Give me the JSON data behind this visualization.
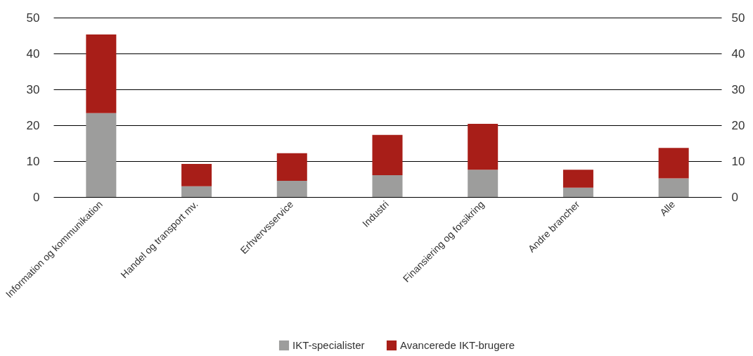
{
  "chart_data": {
    "type": "bar",
    "stacked": true,
    "categories": [
      "Information og kommunikation",
      "Handel og transport mv.",
      "Erhvervsservice",
      "Industri",
      "Finansiering og forsikring",
      "Andre brancher",
      "Alle"
    ],
    "series": [
      {
        "name": "IKT-specialister",
        "color": "#9d9d9c",
        "values": [
          23.4,
          3.0,
          4.5,
          6.1,
          7.6,
          2.6,
          5.2
        ]
      },
      {
        "name": "Avancerede IKT-brugere",
        "color": "#a81e18",
        "values": [
          21.9,
          6.2,
          7.7,
          11.2,
          12.8,
          5.0,
          8.5
        ]
      }
    ],
    "ylim": [
      0,
      50
    ],
    "yticks": [
      0,
      10,
      20,
      30,
      40,
      50
    ],
    "y2lim": [
      0,
      50
    ],
    "y2ticks": [
      0,
      10,
      20,
      30,
      40,
      50
    ],
    "grid": "y",
    "legend": "bottom"
  }
}
